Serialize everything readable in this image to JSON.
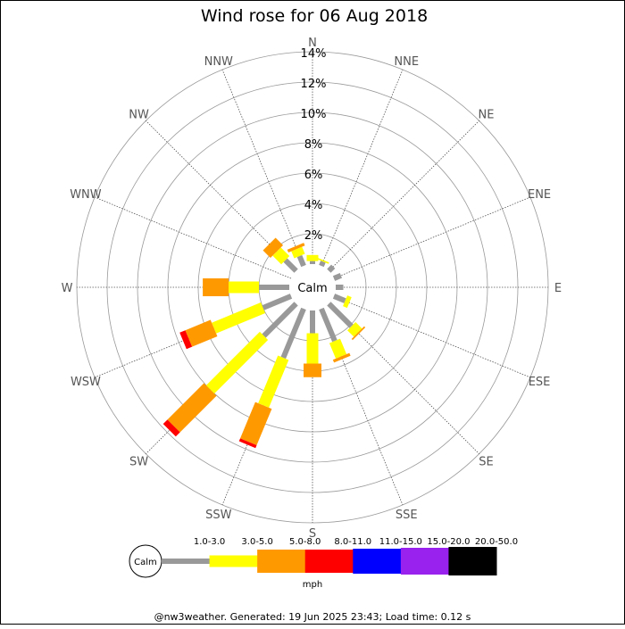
{
  "chart_data": {
    "type": "wind_rose",
    "title": "Wind rose for 06 Aug 2018",
    "center_label": "Calm",
    "radial_axis": {
      "min": 0,
      "max": 14,
      "step": 2,
      "unit": "%",
      "tick_labels": [
        "2%",
        "4%",
        "6%",
        "8%",
        "10%",
        "12%",
        "14%"
      ]
    },
    "directions": [
      "N",
      "NNE",
      "NE",
      "ENE",
      "E",
      "ESE",
      "SE",
      "SSE",
      "S",
      "SSW",
      "SW",
      "WSW",
      "W",
      "WNW",
      "NW",
      "NNW"
    ],
    "speed_unit": "mph",
    "speed_bins": [
      {
        "label": "1.0-3.0",
        "color": "#999999"
      },
      {
        "label": "3.0-5.0",
        "color": "#ffff00"
      },
      {
        "label": "5.0-8.0",
        "color": "#ff9900"
      },
      {
        "label": "8.0-11.0",
        "color": "#ff0000"
      },
      {
        "label": "11.0-15.0",
        "color": "#0000ff"
      },
      {
        "label": "15.0-20.0",
        "color": "#9922ee"
      },
      {
        "label": "20.0-50.0",
        "color": "#000000"
      }
    ],
    "frequencies_percent": [
      {
        "direction": "N",
        "values": [
          0.2,
          0.4,
          0,
          0,
          0,
          0,
          0
        ]
      },
      {
        "direction": "NNE",
        "values": [
          0.3,
          0.1,
          0,
          0,
          0,
          0,
          0
        ]
      },
      {
        "direction": "NE",
        "values": [
          0.4,
          0,
          0,
          0,
          0,
          0,
          0
        ]
      },
      {
        "direction": "ENE",
        "values": [
          0.5,
          0,
          0,
          0,
          0,
          0,
          0
        ]
      },
      {
        "direction": "E",
        "values": [
          0.5,
          0,
          0,
          0,
          0,
          0,
          0
        ]
      },
      {
        "direction": "ESE",
        "values": [
          0.8,
          0.3,
          0,
          0,
          0,
          0,
          0
        ]
      },
      {
        "direction": "SE",
        "values": [
          2.1,
          0.6,
          0.1,
          0,
          0,
          0,
          0
        ]
      },
      {
        "direction": "SSE",
        "values": [
          2.3,
          1.1,
          0.2,
          0,
          0,
          0,
          0
        ]
      },
      {
        "direction": "S",
        "values": [
          1.5,
          2.0,
          0.9,
          0,
          0,
          0,
          0
        ]
      },
      {
        "direction": "SSW",
        "values": [
          3.5,
          3.4,
          2.6,
          0.2,
          0,
          0,
          0
        ]
      },
      {
        "direction": "SW",
        "values": [
          3.0,
          5.0,
          3.4,
          0.4,
          0,
          0,
          0
        ]
      },
      {
        "direction": "WSW",
        "values": [
          2.0,
          3.5,
          1.8,
          0.4,
          0,
          0,
          0
        ]
      },
      {
        "direction": "W",
        "values": [
          2.0,
          2.0,
          1.7,
          0,
          0,
          0,
          0
        ]
      },
      {
        "direction": "WNW",
        "values": [
          0,
          0,
          0,
          0,
          0,
          0,
          0
        ]
      },
      {
        "direction": "NW",
        "values": [
          1.0,
          0.8,
          0.7,
          0,
          0,
          0,
          0
        ]
      },
      {
        "direction": "NNW",
        "values": [
          0.7,
          0.5,
          0.2,
          0,
          0,
          0,
          0
        ]
      }
    ]
  },
  "footer": "@nw3weather. Generated: 19 Jun 2025 23:43; Load time: 0.12 s"
}
